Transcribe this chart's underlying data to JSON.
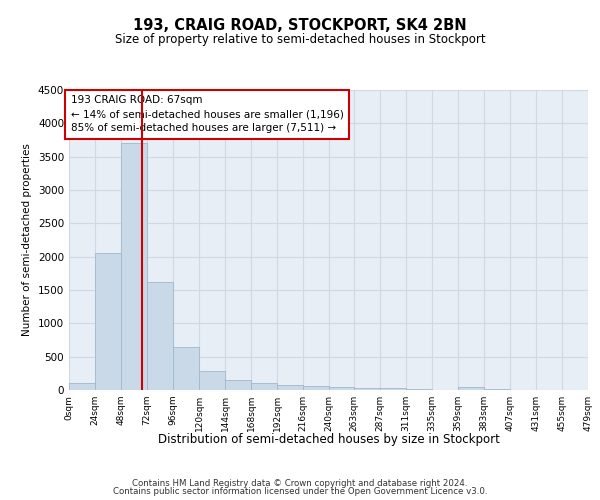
{
  "title": "193, CRAIG ROAD, STOCKPORT, SK4 2BN",
  "subtitle": "Size of property relative to semi-detached houses in Stockport",
  "xlabel": "Distribution of semi-detached houses by size in Stockport",
  "ylabel": "Number of semi-detached properties",
  "footer_line1": "Contains HM Land Registry data © Crown copyright and database right 2024.",
  "footer_line2": "Contains public sector information licensed under the Open Government Licence v3.0.",
  "property_size": 67,
  "annotation_title": "193 CRAIG ROAD: 67sqm",
  "annotation_line1": "← 14% of semi-detached houses are smaller (1,196)",
  "annotation_line2": "85% of semi-detached houses are larger (7,511) →",
  "bar_edges": [
    0,
    24,
    48,
    72,
    96,
    120,
    144,
    168,
    192,
    216,
    240,
    263,
    287,
    311,
    335,
    359,
    383,
    407,
    431,
    455,
    479
  ],
  "bar_heights": [
    100,
    2060,
    3700,
    1620,
    640,
    290,
    145,
    100,
    80,
    65,
    45,
    35,
    25,
    20,
    5,
    45,
    10,
    5,
    5,
    5
  ],
  "bar_color": "#c9d9e8",
  "bar_edge_color": "#a0b8cc",
  "line_color": "#cc0000",
  "grid_color": "#d0d8e8",
  "bg_color": "#e8eef5",
  "ylim": [
    0,
    4500
  ],
  "yticks": [
    0,
    500,
    1000,
    1500,
    2000,
    2500,
    3000,
    3500,
    4000,
    4500
  ],
  "tick_labels": [
    "0sqm",
    "24sqm",
    "48sqm",
    "72sqm",
    "96sqm",
    "120sqm",
    "144sqm",
    "168sqm",
    "192sqm",
    "216sqm",
    "240sqm",
    "263sqm",
    "287sqm",
    "311sqm",
    "335sqm",
    "359sqm",
    "383sqm",
    "407sqm",
    "431sqm",
    "455sqm",
    "479sqm"
  ]
}
